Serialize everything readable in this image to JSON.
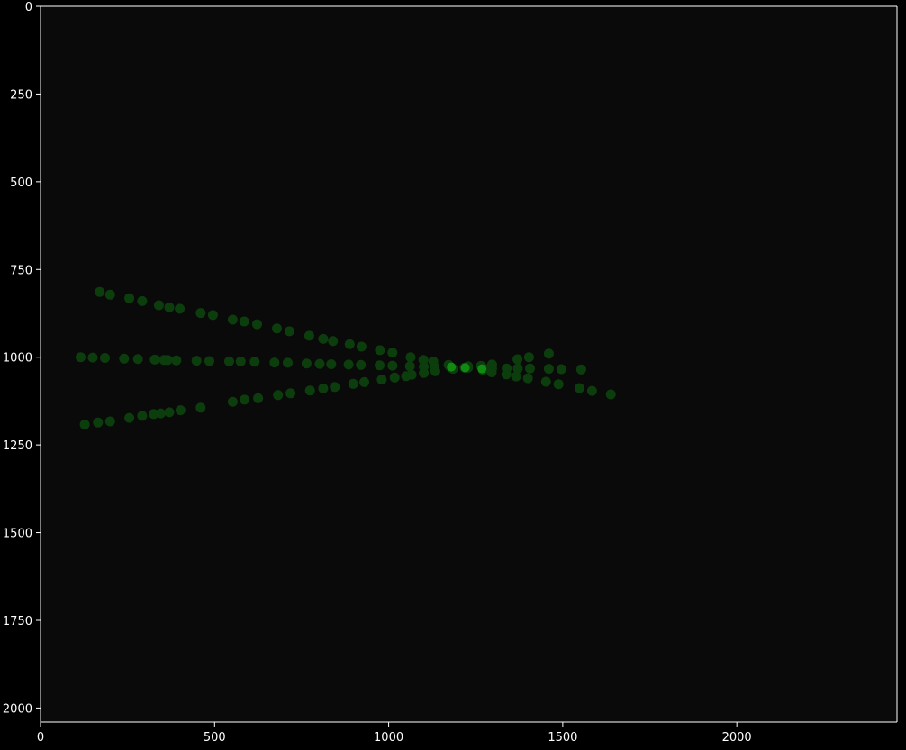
{
  "chart_data": {
    "type": "scatter",
    "title": "",
    "xlabel": "",
    "ylabel": "",
    "xlim": [
      0,
      2460
    ],
    "ylim": [
      2040,
      0
    ],
    "y_inverted": true,
    "grid": false,
    "x_ticks": [
      0,
      500,
      1000,
      1500,
      2000
    ],
    "y_ticks": [
      0,
      250,
      500,
      750,
      1000,
      1250,
      1500,
      1750,
      2000
    ],
    "colors": {
      "background": "#000000",
      "plot_background": "#0a0a0a",
      "axis": "#ffffff",
      "point": "#0c3d0c",
      "point_bright": "#118a11"
    },
    "series": [
      {
        "values": [
          [
            170,
            814
          ],
          [
            200,
            822
          ],
          [
            255,
            832
          ],
          [
            292,
            840
          ],
          [
            340,
            852
          ],
          [
            370,
            858
          ],
          [
            400,
            862
          ],
          [
            460,
            874
          ],
          [
            495,
            880
          ],
          [
            552,
            893
          ],
          [
            585,
            898
          ],
          [
            622,
            906
          ],
          [
            679,
            918
          ],
          [
            715,
            926
          ],
          [
            772,
            939
          ],
          [
            812,
            948
          ],
          [
            840,
            954
          ],
          [
            888,
            963
          ],
          [
            922,
            970
          ],
          [
            975,
            980
          ],
          [
            1011,
            987
          ],
          [
            1063,
            1000
          ],
          [
            1100,
            1008
          ],
          [
            1128,
            1012
          ],
          [
            1172,
            1022
          ],
          [
            1228,
            1026
          ],
          [
            1265,
            1025
          ],
          [
            1297,
            1021
          ],
          [
            1370,
            1006
          ],
          [
            1403,
            1000
          ],
          [
            1460,
            990
          ]
        ]
      },
      {
        "values": [
          [
            115,
            1000
          ],
          [
            150,
            1001
          ],
          [
            185,
            1002
          ],
          [
            240,
            1004
          ],
          [
            280,
            1005
          ],
          [
            328,
            1007
          ],
          [
            355,
            1008
          ],
          [
            365,
            1008
          ],
          [
            390,
            1009
          ],
          [
            448,
            1010
          ],
          [
            485,
            1011
          ],
          [
            542,
            1012
          ],
          [
            575,
            1012
          ],
          [
            615,
            1013
          ],
          [
            672,
            1015
          ],
          [
            710,
            1016
          ],
          [
            764,
            1018
          ],
          [
            802,
            1019
          ],
          [
            835,
            1020
          ],
          [
            885,
            1021
          ],
          [
            920,
            1022
          ],
          [
            974,
            1023
          ],
          [
            1011,
            1024
          ],
          [
            1061,
            1026
          ],
          [
            1101,
            1027
          ],
          [
            1132,
            1028
          ],
          [
            1178,
            1029
          ],
          [
            1218,
            1030
          ],
          [
            1272,
            1031
          ],
          [
            1297,
            1032
          ],
          [
            1339,
            1032
          ],
          [
            1371,
            1032
          ],
          [
            1406,
            1032
          ],
          [
            1460,
            1033
          ],
          [
            1496,
            1034
          ],
          [
            1553,
            1035
          ]
        ]
      },
      {
        "values": [
          [
            127,
            1192
          ],
          [
            165,
            1186
          ],
          [
            200,
            1183
          ],
          [
            255,
            1173
          ],
          [
            292,
            1167
          ],
          [
            325,
            1162
          ],
          [
            345,
            1160
          ],
          [
            370,
            1157
          ],
          [
            402,
            1151
          ],
          [
            460,
            1144
          ],
          [
            552,
            1127
          ],
          [
            586,
            1121
          ],
          [
            625,
            1117
          ],
          [
            682,
            1108
          ],
          [
            718,
            1103
          ],
          [
            774,
            1095
          ],
          [
            812,
            1089
          ],
          [
            845,
            1085
          ],
          [
            898,
            1076
          ],
          [
            930,
            1071
          ],
          [
            980,
            1064
          ],
          [
            1017,
            1058
          ],
          [
            1050,
            1054
          ],
          [
            1066,
            1050
          ],
          [
            1101,
            1045
          ],
          [
            1134,
            1040
          ],
          [
            1185,
            1033
          ],
          [
            1228,
            1030
          ],
          [
            1270,
            1036
          ],
          [
            1296,
            1043
          ],
          [
            1338,
            1049
          ],
          [
            1366,
            1055
          ],
          [
            1400,
            1060
          ],
          [
            1452,
            1070
          ],
          [
            1488,
            1077
          ],
          [
            1548,
            1088
          ],
          [
            1584,
            1096
          ],
          [
            1638,
            1106
          ]
        ]
      }
    ],
    "highlight_points": [
      [
        1180,
        1028
      ],
      [
        1220,
        1030
      ],
      [
        1268,
        1033
      ]
    ]
  }
}
